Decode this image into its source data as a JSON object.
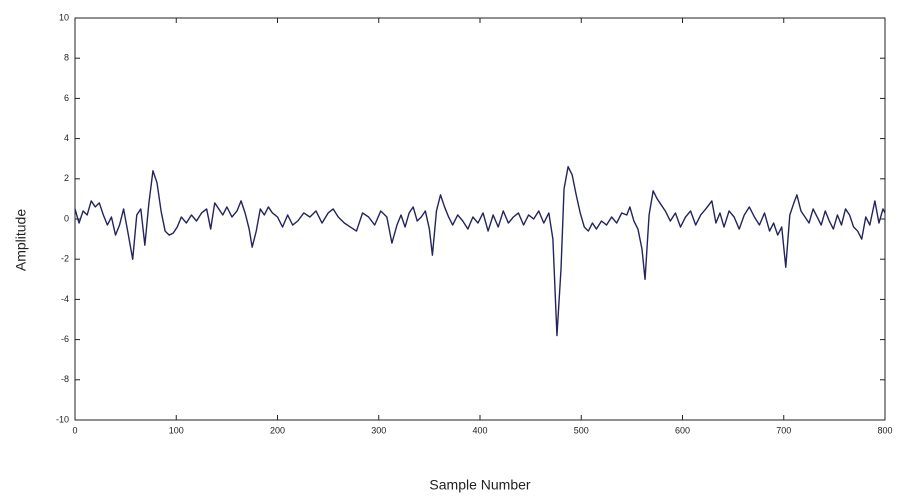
{
  "chart_data": {
    "type": "line",
    "xlabel": "Sample Number",
    "ylabel": "Amplitude",
    "xlim": [
      0,
      800
    ],
    "xticks": [
      0,
      100,
      200,
      300,
      400,
      500,
      600,
      700,
      800
    ],
    "ylim": [
      -10,
      10
    ],
    "yticks": [
      -10,
      -8,
      -6,
      -4,
      -2,
      0,
      2,
      4,
      6,
      8,
      10
    ],
    "grid": false,
    "x": [
      0,
      4,
      8,
      12,
      16,
      20,
      24,
      28,
      32,
      36,
      40,
      44,
      48,
      52,
      57,
      61,
      65,
      69,
      73,
      77,
      81,
      85,
      89,
      93,
      97,
      101,
      105,
      110,
      115,
      120,
      125,
      130,
      134,
      138,
      142,
      146,
      150,
      155,
      160,
      164,
      168,
      172,
      175,
      179,
      183,
      187,
      191,
      195,
      200,
      205,
      210,
      215,
      220,
      226,
      232,
      238,
      244,
      250,
      255,
      260,
      266,
      272,
      278,
      284,
      290,
      296,
      302,
      308,
      313,
      318,
      322,
      326,
      330,
      334,
      338,
      342,
      346,
      350,
      353,
      357,
      361,
      365,
      369,
      373,
      378,
      383,
      388,
      393,
      398,
      403,
      408,
      413,
      418,
      423,
      428,
      433,
      438,
      443,
      448,
      453,
      458,
      463,
      468,
      472,
      476,
      480,
      483,
      487,
      491,
      495,
      499,
      503,
      507,
      511,
      515,
      520,
      525,
      530,
      535,
      540,
      545,
      548,
      552,
      556,
      560,
      563,
      567,
      571,
      575,
      579,
      583,
      588,
      593,
      598,
      603,
      608,
      613,
      618,
      623,
      629,
      633,
      637,
      641,
      646,
      651,
      656,
      661,
      666,
      671,
      676,
      681,
      686,
      690,
      694,
      698,
      702,
      706,
      710,
      713,
      717,
      721,
      725,
      729,
      733,
      737,
      741,
      745,
      749,
      753,
      757,
      761,
      765,
      769,
      773,
      777,
      781,
      785,
      790,
      794,
      798,
      800
    ],
    "series": [
      {
        "color": "#23235e",
        "values": [
          0.5,
          -0.2,
          0.4,
          0.2,
          0.9,
          0.6,
          0.8,
          0.2,
          -0.3,
          0.1,
          -0.8,
          -0.3,
          0.5,
          -0.6,
          -2.0,
          0.2,
          0.5,
          -1.3,
          0.8,
          2.4,
          1.8,
          0.4,
          -0.6,
          -0.8,
          -0.7,
          -0.4,
          0.1,
          -0.2,
          0.2,
          -0.1,
          0.3,
          0.5,
          -0.5,
          0.8,
          0.5,
          0.2,
          0.6,
          0.1,
          0.4,
          0.9,
          0.3,
          -0.5,
          -1.4,
          -0.6,
          0.5,
          0.2,
          0.6,
          0.3,
          0.1,
          -0.4,
          0.2,
          -0.3,
          -0.1,
          0.3,
          0.1,
          0.4,
          -0.2,
          0.3,
          0.5,
          0.1,
          -0.2,
          -0.4,
          -0.6,
          0.3,
          0.1,
          -0.3,
          0.4,
          0.1,
          -1.2,
          -0.3,
          0.2,
          -0.4,
          0.3,
          0.6,
          -0.1,
          0.1,
          0.4,
          -0.5,
          -1.8,
          0.4,
          1.2,
          0.6,
          0.1,
          -0.3,
          0.2,
          -0.1,
          -0.5,
          0.1,
          -0.2,
          0.3,
          -0.6,
          0.2,
          -0.4,
          0.4,
          -0.2,
          0.1,
          0.3,
          -0.3,
          0.2,
          0.0,
          0.4,
          -0.2,
          0.3,
          -1.0,
          -5.8,
          -2.5,
          1.5,
          2.6,
          2.2,
          1.2,
          0.3,
          -0.4,
          -0.6,
          -0.2,
          -0.5,
          -0.1,
          -0.3,
          0.1,
          -0.2,
          0.3,
          0.2,
          0.6,
          -0.1,
          -0.5,
          -1.5,
          -3.0,
          0.2,
          1.4,
          1.0,
          0.7,
          0.4,
          -0.1,
          0.3,
          -0.4,
          0.1,
          0.4,
          -0.3,
          0.2,
          0.5,
          0.9,
          -0.2,
          0.3,
          -0.4,
          0.4,
          0.1,
          -0.5,
          0.2,
          0.6,
          0.1,
          -0.3,
          0.3,
          -0.6,
          -0.2,
          -0.8,
          -0.4,
          -2.4,
          0.2,
          0.8,
          1.2,
          0.4,
          0.1,
          -0.2,
          0.5,
          0.1,
          -0.3,
          0.4,
          -0.1,
          -0.5,
          0.2,
          -0.3,
          0.5,
          0.2,
          -0.4,
          -0.6,
          -1.0,
          0.1,
          -0.3,
          0.9,
          -0.2,
          0.5,
          0.3
        ]
      }
    ]
  }
}
